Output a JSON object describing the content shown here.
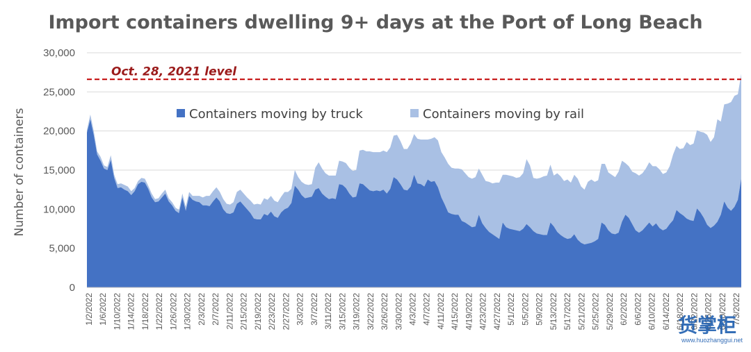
{
  "chart_data": {
    "type": "area",
    "title": "Import containers dwelling 9+ days at the Port of Long Beach",
    "ylabel": "Number of containers",
    "xlabel": "",
    "ylim": [
      0,
      30000
    ],
    "y_ticks": [
      0,
      5000,
      10000,
      15000,
      20000,
      25000,
      30000
    ],
    "y_tick_labels": [
      "0",
      "5,000",
      "10,000",
      "15,000",
      "20,000",
      "25,000",
      "30,000"
    ],
    "stacked": true,
    "grid": "horizontal",
    "legend": "top-center",
    "x_tick_labels": [
      "1/2/2022",
      "1/6/2022",
      "1/10/2022",
      "1/14/2022",
      "1/18/2022",
      "1/22/2022",
      "1/26/2022",
      "1/30/2022",
      "2/3/2022",
      "2/7/2022",
      "2/11/2022",
      "2/15/2022",
      "2/19/2022",
      "2/23/2022",
      "2/27/2022",
      "3/3/2022",
      "3/7/2022",
      "3/11/2022",
      "3/15/2022",
      "3/19/2022",
      "3/22/2022",
      "3/26/2022",
      "3/30/2022",
      "4/3/2022",
      "4/7/2022",
      "4/11/2022",
      "4/15/2022",
      "4/19/2022",
      "4/23/2022",
      "4/27/2022",
      "5/1/2022",
      "5/5/2022",
      "5/9/2022",
      "5/13/2022",
      "5/17/2022",
      "5/21/2022",
      "5/25/2022",
      "5/29/2022",
      "6/2/2022",
      "6/6/2022",
      "6/10/2022",
      "6/14/2022",
      "6/18/2022",
      "6/22/2022",
      "6/26/2022",
      "6/30/2022",
      "7/3/2022"
    ],
    "series": [
      {
        "name": "Containers moving by truck",
        "color": "#4472c4",
        "values": [
          19800,
          21500,
          19500,
          17000,
          16200,
          15200,
          15000,
          16300,
          14000,
          12700,
          12800,
          12500,
          12300,
          11800,
          12300,
          13200,
          13500,
          13400,
          12600,
          11500,
          10900,
          11000,
          11500,
          12000,
          11000,
          10500,
          9800,
          9500,
          11500,
          9800,
          11700,
          11200,
          11000,
          10900,
          10500,
          10500,
          10400,
          11000,
          11500,
          11000,
          10000,
          9500,
          9400,
          9600,
          10700,
          11000,
          10500,
          10000,
          9500,
          8800,
          8700,
          8700,
          9400,
          9200,
          9700,
          9100,
          8900,
          9600,
          10000,
          10200,
          10800,
          13000,
          12500,
          11800,
          11400,
          11500,
          11600,
          12500,
          12700,
          12000,
          11600,
          11300,
          11400,
          11300,
          13200,
          13100,
          12700,
          12000,
          11500,
          11600,
          13300,
          13200,
          12800,
          12400,
          12300,
          12400,
          12300,
          12500,
          12000,
          12600,
          14100,
          13800,
          13200,
          12500,
          12400,
          12900,
          14400,
          13300,
          13200,
          12900,
          13800,
          13500,
          13600,
          12800,
          11500,
          10600,
          9600,
          9400,
          9300,
          9300,
          8500,
          8300,
          8000,
          7700,
          7800,
          9300,
          8200,
          7600,
          7100,
          6800,
          6500,
          6200,
          8300,
          7700,
          7500,
          7400,
          7300,
          7200,
          7500,
          8100,
          7700,
          7200,
          6900,
          6800,
          6700,
          6700,
          8300,
          7800,
          7100,
          6700,
          6400,
          6200,
          6300,
          6800,
          6100,
          5700,
          5500,
          5600,
          5700,
          5900,
          6200,
          8300,
          8000,
          7300,
          6900,
          6800,
          7000,
          8400,
          9300,
          8900,
          8100,
          7300,
          7000,
          7300,
          7800,
          8300,
          7800,
          8200,
          7600,
          7300,
          7500,
          8100,
          8600,
          9900,
          9500,
          9200,
          8800,
          8600,
          8500,
          10100,
          9600,
          8900,
          8000,
          7600,
          7900,
          8400,
          9300,
          11000,
          10200,
          9800,
          10300,
          11200,
          13900
        ]
      },
      {
        "name": "Containers moving by rail",
        "color": "#a9c0e4",
        "values": [
          300,
          600,
          500,
          400,
          500,
          400,
          400,
          600,
          400,
          500,
          500,
          600,
          600,
          500,
          400,
          400,
          500,
          500,
          400,
          500,
          400,
          400,
          500,
          500,
          400,
          400,
          400,
          400,
          500,
          500,
          500,
          500,
          700,
          800,
          1000,
          1200,
          1300,
          1300,
          1300,
          1200,
          1300,
          1200,
          1200,
          1300,
          1500,
          1500,
          1500,
          1500,
          1600,
          1800,
          2000,
          1900,
          2000,
          2000,
          2000,
          2000,
          2000,
          2000,
          2200,
          2000,
          1800,
          2000,
          1600,
          1700,
          1800,
          1600,
          1600,
          2800,
          3300,
          3200,
          3000,
          3000,
          2900,
          3000,
          3000,
          3000,
          3200,
          3300,
          3400,
          3400,
          4200,
          4400,
          4600,
          5000,
          5000,
          4900,
          5000,
          5000,
          5300,
          5300,
          5300,
          5700,
          5500,
          5200,
          5300,
          5500,
          5200,
          5700,
          5700,
          6000,
          5100,
          5500,
          5600,
          6000,
          5800,
          6000,
          6200,
          5900,
          5900,
          5900,
          6600,
          6300,
          6100,
          6200,
          6300,
          5900,
          6200,
          6000,
          6400,
          6500,
          6900,
          7200,
          6100,
          6700,
          6800,
          6800,
          6700,
          6900,
          7100,
          8300,
          7900,
          6800,
          7000,
          7200,
          7500,
          7600,
          7400,
          6500,
          7500,
          7500,
          7200,
          7600,
          7100,
          7600,
          7800,
          7200,
          7000,
          7900,
          8100,
          7600,
          7500,
          7500,
          7800,
          7400,
          7500,
          7300,
          7800,
          7800,
          6600,
          6600,
          6700,
          7300,
          7300,
          7300,
          7400,
          7700,
          7700,
          7300,
          7500,
          7200,
          7200,
          7400,
          8400,
          8200,
          8200,
          8600,
          9800,
          9600,
          9900,
          10000,
          10300,
          10900,
          11500,
          11000,
          11300,
          13100,
          11900,
          12400,
          13300,
          13900,
          14200,
          13500,
          13400,
          14000,
          14800
        ]
      }
    ],
    "reference_line": {
      "label": "Oct. 28, 2021 level",
      "value": 26600,
      "color": "#c00000"
    }
  },
  "watermark": {
    "text": "货掌柜",
    "url": "www.huozhanggui.net"
  }
}
